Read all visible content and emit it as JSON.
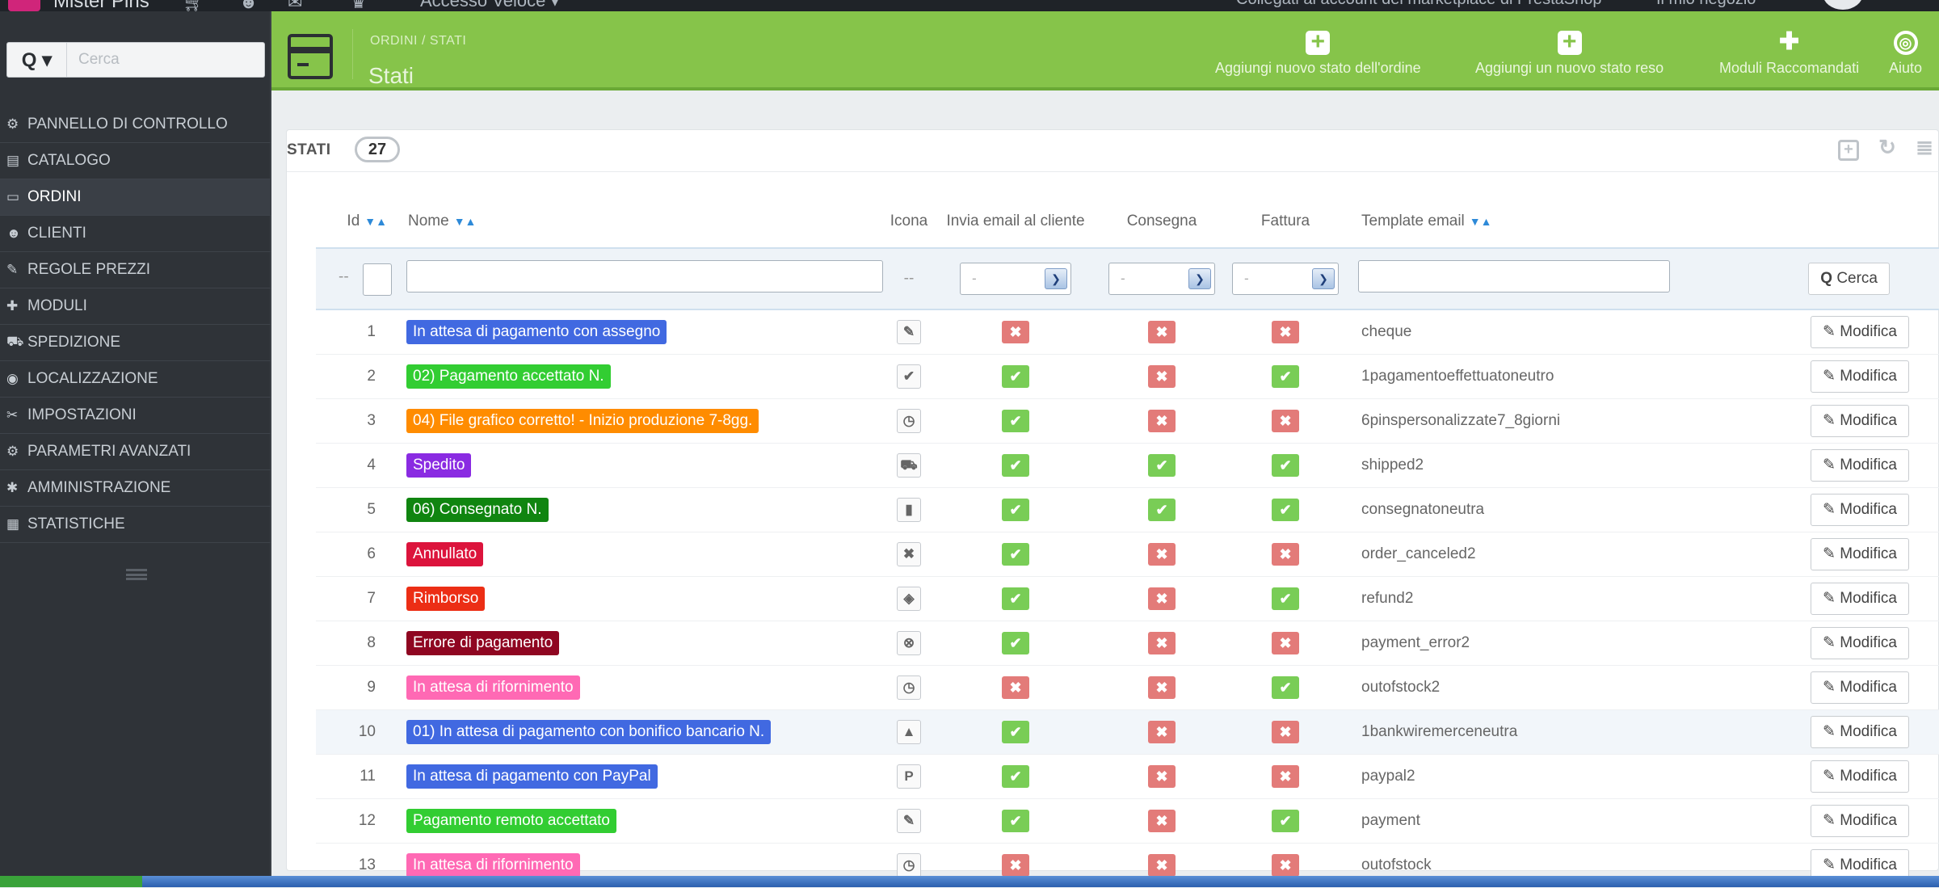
{
  "topbar": {
    "shop_name": "Mister Pins",
    "quick_access": "Accesso Veloce ▾",
    "marketplace": "Collegati al account del marketplace di PrestaShop",
    "shop_link": "Il mio negozio"
  },
  "search": {
    "button": "Q ▾",
    "placeholder": "Cerca"
  },
  "sidebar": {
    "items": [
      {
        "icon": "⚙",
        "label": "PANNELLO DI CONTROLLO"
      },
      {
        "icon": "▤",
        "label": "CATALOGO"
      },
      {
        "icon": "▭",
        "label": "ORDINI"
      },
      {
        "icon": "☻",
        "label": "CLIENTI"
      },
      {
        "icon": "✎",
        "label": "REGOLE PREZZI"
      },
      {
        "icon": "✚",
        "label": "MODULI"
      },
      {
        "icon": "⛟",
        "label": "SPEDIZIONE"
      },
      {
        "icon": "◉",
        "label": "LOCALIZZAZIONE"
      },
      {
        "icon": "✂",
        "label": "IMPOSTAZIONI"
      },
      {
        "icon": "⚙",
        "label": "PARAMETRI AVANZATI"
      },
      {
        "icon": "✱",
        "label": "AMMINISTRAZIONE"
      },
      {
        "icon": "▦",
        "label": "STATISTICHE"
      }
    ]
  },
  "header": {
    "breadcrumb": "ORDINI  /  STATI",
    "title": "Stati",
    "buttons": [
      {
        "icon": "+",
        "label": "Aggiungi nuovo stato dell'ordine"
      },
      {
        "icon": "+",
        "label": "Aggiungi un nuovo stato reso"
      },
      {
        "icon": "✚",
        "label": "Moduli Raccomandati"
      },
      {
        "icon": "◎",
        "label": "Aiuto"
      }
    ]
  },
  "panel": {
    "title": "STATI",
    "count": "27"
  },
  "table": {
    "headers": {
      "id": "Id",
      "name": "Nome",
      "icon": "Icona",
      "send_email": "Invia email al cliente",
      "delivery": "Consegna",
      "invoice": "Fattura",
      "template": "Template email"
    },
    "filter": {
      "dash1": "--",
      "dash2": "--",
      "select_value": "-",
      "search_button": "Cerca"
    },
    "edit_label": "Modifica",
    "rows": [
      {
        "id": "1",
        "name": "In attesa di pagamento con assegno",
        "bg": "#4169e1",
        "fg": "#ffffff",
        "icon": "✎",
        "email": false,
        "delivery": false,
        "invoice": false,
        "template": "cheque"
      },
      {
        "id": "2",
        "name": "02) Pagamento accettato N.",
        "bg": "#32cd32",
        "fg": "#ffffff",
        "icon": "✔",
        "email": true,
        "delivery": false,
        "invoice": true,
        "template": "1pagamentoeffettuatoneutro"
      },
      {
        "id": "3",
        "name": "04) File grafico corretto! - Inizio produzione 7-8gg.",
        "bg": "#ff8c00",
        "fg": "#ffffff",
        "icon": "◷",
        "email": true,
        "delivery": false,
        "invoice": false,
        "template": "6pinspersonalizzate7_8giorni"
      },
      {
        "id": "4",
        "name": "Spedito",
        "bg": "#8a2be2",
        "fg": "#ffffff",
        "icon": "⛟",
        "email": true,
        "delivery": true,
        "invoice": true,
        "template": "shipped2"
      },
      {
        "id": "5",
        "name": "06) Consegnato N.",
        "bg": "#108510",
        "fg": "#ffffff",
        "icon": "▮",
        "email": true,
        "delivery": true,
        "invoice": true,
        "template": "consegnatoneutra"
      },
      {
        "id": "6",
        "name": "Annullato",
        "bg": "#dc143c",
        "fg": "#ffffff",
        "icon": "✖",
        "email": true,
        "delivery": false,
        "invoice": false,
        "template": "order_canceled2"
      },
      {
        "id": "7",
        "name": "Rimborso",
        "bg": "#ec2e15",
        "fg": "#ffffff",
        "icon": "◈",
        "email": true,
        "delivery": false,
        "invoice": true,
        "template": "refund2"
      },
      {
        "id": "8",
        "name": "Errore di pagamento",
        "bg": "#8f0621",
        "fg": "#ffffff",
        "icon": "⊗",
        "email": true,
        "delivery": false,
        "invoice": false,
        "template": "payment_error2"
      },
      {
        "id": "9",
        "name": "In attesa di rifornimento",
        "bg": "#ff69b4",
        "fg": "#ffffff",
        "icon": "◷",
        "email": false,
        "delivery": false,
        "invoice": true,
        "template": "outofstock2"
      },
      {
        "id": "10",
        "name": "01) In attesa di pagamento con bonifico bancario N.",
        "bg": "#4169e1",
        "fg": "#ffffff",
        "icon": "▲",
        "email": true,
        "delivery": false,
        "invoice": false,
        "template": "1bankwiremerceneutra"
      },
      {
        "id": "11",
        "name": "In attesa di pagamento con PayPal",
        "bg": "#4169e1",
        "fg": "#ffffff",
        "icon": "P",
        "email": true,
        "delivery": false,
        "invoice": false,
        "template": "paypal2"
      },
      {
        "id": "12",
        "name": "Pagamento remoto accettato",
        "bg": "#32cd32",
        "fg": "#ffffff",
        "icon": "✎",
        "email": true,
        "delivery": false,
        "invoice": true,
        "template": "payment"
      },
      {
        "id": "13",
        "name": "In attesa di rifornimento",
        "bg": "#ff69b4",
        "fg": "#ffffff",
        "icon": "◷",
        "email": false,
        "delivery": false,
        "invoice": false,
        "template": "outofstock"
      }
    ]
  }
}
